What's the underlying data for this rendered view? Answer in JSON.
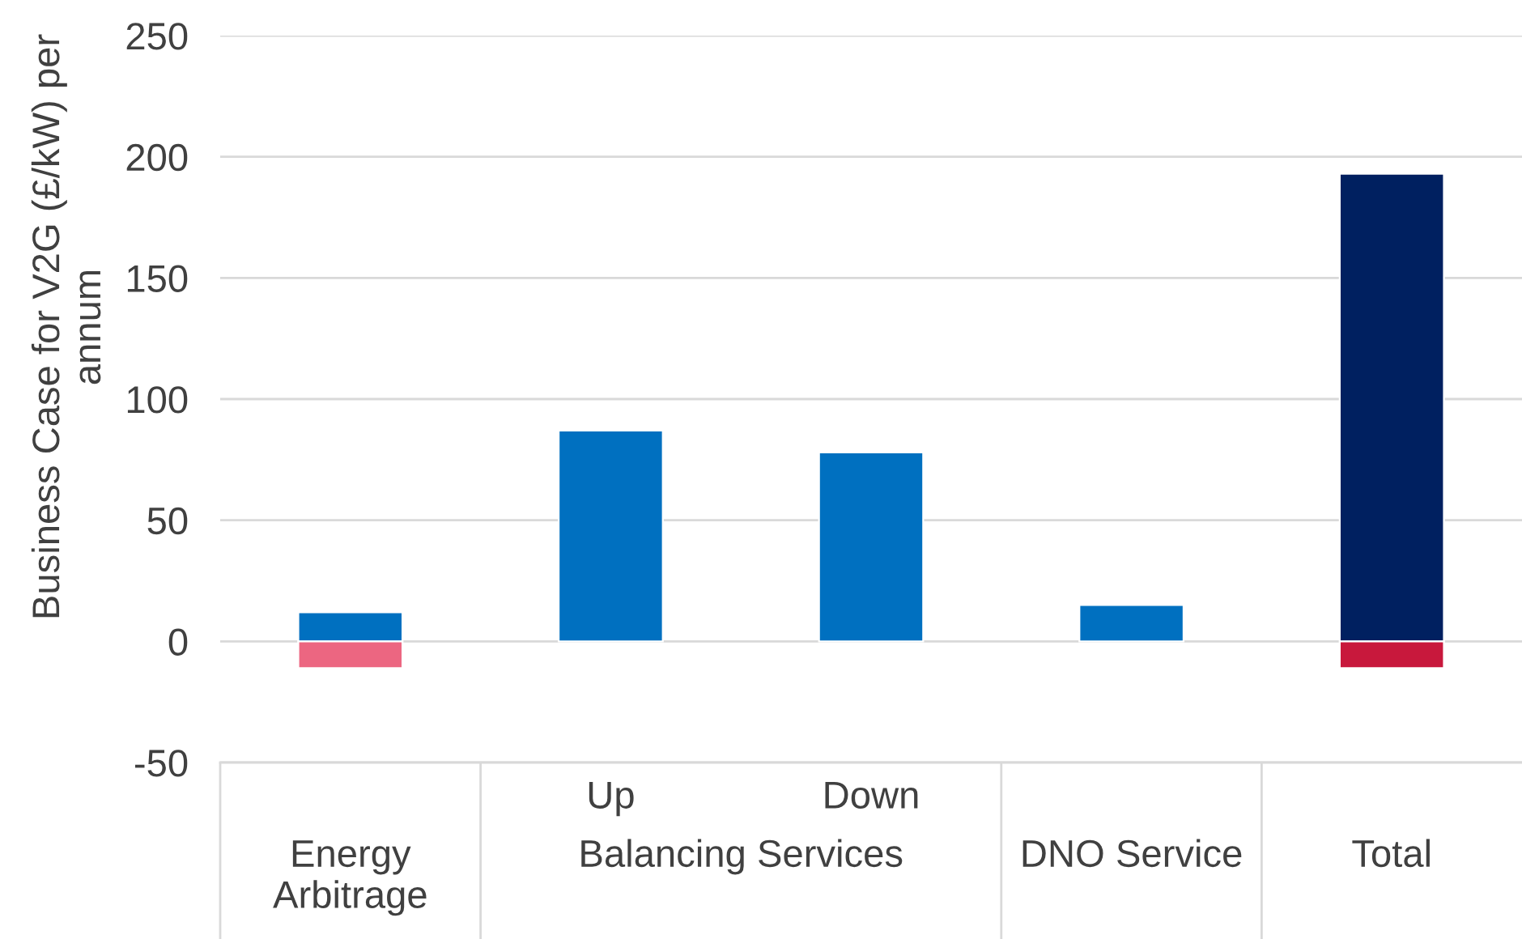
{
  "chart_data": {
    "type": "bar",
    "categories": [
      "Energy Arbitrage",
      "Up",
      "Down",
      "DNO Service",
      "Total"
    ],
    "series": [
      {
        "values": [
          12,
          87,
          78,
          15,
          193
        ],
        "colors": [
          "#0070c0",
          "#0070c0",
          "#0070c0",
          "#0070c0",
          "#002060"
        ]
      },
      {
        "values": [
          -11,
          null,
          null,
          null,
          -11
        ],
        "colors": [
          "#ec6681",
          null,
          null,
          null,
          "#c8183c"
        ]
      }
    ],
    "stacked": true,
    "ylabel": "Business Case for V2G (£/kW) per annum",
    "ylim": [
      -50,
      250
    ],
    "yticks": [
      -50,
      0,
      50,
      100,
      150,
      200,
      250
    ],
    "grid": "y",
    "annotations": [
      "Balancing Services"
    ]
  }
}
